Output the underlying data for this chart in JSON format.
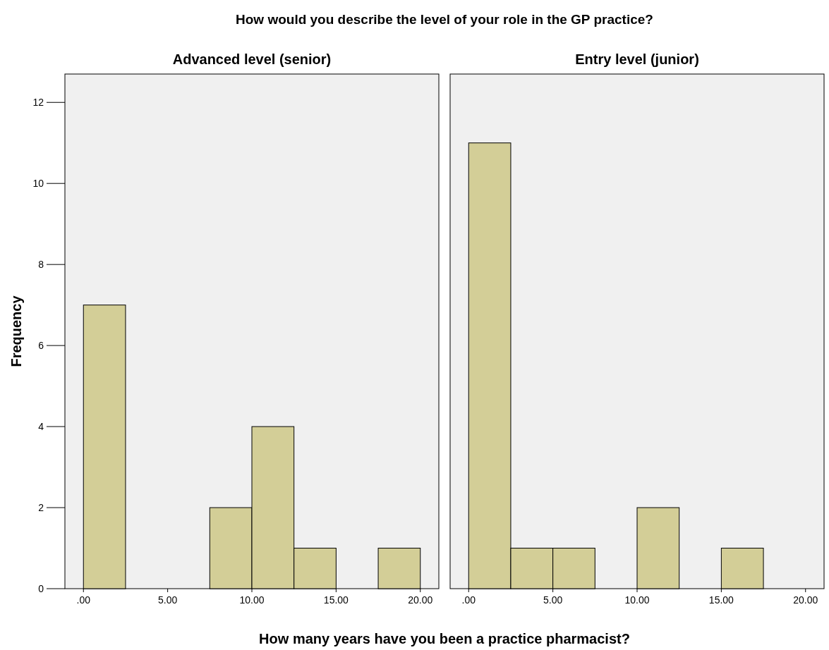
{
  "chart_data": [
    {
      "type": "histogram",
      "title": "Advanced level (senior)",
      "annotations": [
        "How would you describe the level of your role in the GP practice?"
      ],
      "xlabel": "How many years have you been a practice pharmacist?",
      "ylabel": "Frequency",
      "bins": [
        0,
        2.5,
        5,
        7.5,
        10,
        12.5,
        15,
        17.5,
        20
      ],
      "values": [
        7,
        0,
        0,
        2,
        4,
        1,
        0,
        1
      ],
      "color": "#d3ce97",
      "xlim": [
        -1.1,
        21.1
      ],
      "ylim": [
        0,
        12.7
      ],
      "xticks": [
        {
          "value": 0,
          "label": ".00"
        },
        {
          "value": 5,
          "label": "5.00"
        },
        {
          "value": 10,
          "label": "10.00"
        },
        {
          "value": 15,
          "label": "15.00"
        },
        {
          "value": 20,
          "label": "20.00"
        }
      ],
      "yticks": [
        0,
        2,
        4,
        6,
        8,
        10,
        12
      ],
      "grid": false
    },
    {
      "type": "histogram",
      "title": "Entry level (junior)",
      "bins": [
        0,
        2.5,
        5,
        7.5,
        10,
        12.5,
        15,
        17.5,
        20
      ],
      "values": [
        11,
        1,
        1,
        0,
        2,
        0,
        1,
        0
      ],
      "color": "#d3ce97",
      "xlim": [
        -1.1,
        21.1
      ],
      "ylim": [
        0,
        12.7
      ],
      "xticks": [
        {
          "value": 0,
          "label": ".00"
        },
        {
          "value": 5,
          "label": "5.00"
        },
        {
          "value": 10,
          "label": "10.00"
        },
        {
          "value": 15,
          "label": "15.00"
        },
        {
          "value": 20,
          "label": "20.00"
        }
      ],
      "tick_labels": "x",
      "grid": false
    }
  ]
}
